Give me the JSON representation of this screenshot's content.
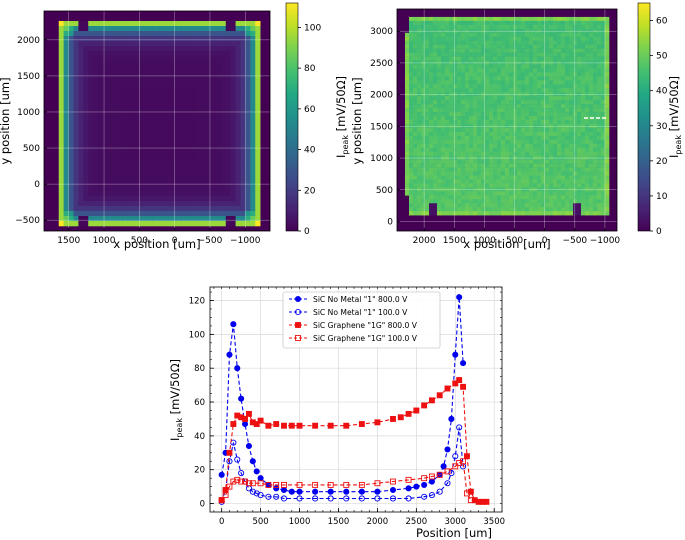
{
  "colors": {
    "viridis": [
      "#440154",
      "#482475",
      "#414487",
      "#355f8d",
      "#2a788e",
      "#21918c",
      "#22a884",
      "#44bf70",
      "#7ad151",
      "#bddf26",
      "#fde725"
    ],
    "blue": "#0000ee",
    "red": "#ee1111",
    "grid": "#ffffff",
    "line_grid": "#d9d9d9"
  },
  "chart_data": [
    {
      "id": "map1",
      "type": "heatmap",
      "title": "",
      "xlabel": "x position [um]",
      "ylabel": "y position [um]",
      "xlim": [
        1850,
        -1350
      ],
      "ylim": [
        -650,
        2400
      ],
      "x_ticks": [
        1500,
        1000,
        500,
        0,
        -500,
        -1000
      ],
      "x_tick_labels": [
        "1500",
        "1000",
        "500",
        "0",
        "−500",
        "−1000"
      ],
      "y_ticks": [
        -500,
        0,
        500,
        1000,
        1500,
        2000
      ],
      "y_tick_labels": [
        "−500",
        "0",
        "500",
        "1000",
        "1500",
        "2000"
      ],
      "colorbar_label_base": "I",
      "colorbar_label_sub": "peak",
      "colorbar_label_tail": " [mV/50Ω]",
      "colorbar_range": [
        0,
        112
      ],
      "colorbar_ticks": [
        0,
        20,
        40,
        60,
        80,
        100
      ],
      "colorbar_tick_labels": [
        "0",
        "20",
        "40",
        "60",
        "80",
        "100"
      ],
      "description_values": {
        "center": 3,
        "edge": 95,
        "corner_peak": 112
      }
    },
    {
      "id": "map2",
      "type": "heatmap",
      "title": "",
      "xlabel": "x position [um]",
      "ylabel": "y position [um]",
      "xlim": [
        2450,
        -1200
      ],
      "ylim": [
        -150,
        3350
      ],
      "x_ticks": [
        2000,
        1500,
        1000,
        500,
        0,
        -500,
        -1000
      ],
      "x_tick_labels": [
        "2000",
        "1500",
        "1000",
        "500",
        "0",
        "−500",
        "−1000"
      ],
      "y_ticks": [
        0,
        500,
        1000,
        1500,
        2000,
        2500,
        3000
      ],
      "y_tick_labels": [
        "0",
        "500",
        "1000",
        "1500",
        "2000",
        "2500",
        "3000"
      ],
      "colorbar_label_base": "I",
      "colorbar_label_sub": "peak",
      "colorbar_label_tail": " [mV/50Ω]",
      "colorbar_range": [
        0,
        65
      ],
      "colorbar_ticks": [
        0,
        10,
        20,
        30,
        40,
        50,
        60
      ],
      "colorbar_tick_labels": [
        "0",
        "10",
        "20",
        "30",
        "40",
        "50",
        "60"
      ],
      "description_values": {
        "interior": 45,
        "edge": 52
      }
    },
    {
      "id": "lines",
      "type": "line",
      "title": "",
      "xlabel": "Position [um]",
      "ylabel_base": "I",
      "ylabel_sub": "peak",
      "ylabel_tail": " [mV/50Ω]",
      "xlim": [
        -150,
        3600
      ],
      "ylim": [
        -5,
        128
      ],
      "x_ticks": [
        0,
        500,
        1000,
        1500,
        2000,
        2500,
        3000,
        3500
      ],
      "x_tick_labels": [
        "0",
        "500",
        "1000",
        "1500",
        "2000",
        "2500",
        "3000",
        "3500"
      ],
      "y_ticks": [
        0,
        20,
        40,
        60,
        80,
        100,
        120
      ],
      "y_tick_labels": [
        "0",
        "20",
        "40",
        "60",
        "80",
        "100",
        "120"
      ],
      "series": [
        {
          "name": "SiC No Metal \"1\" 800.0 V",
          "color": "#0000ee",
          "marker": "circle-filled",
          "x": [
            0,
            50,
            100,
            150,
            200,
            250,
            300,
            350,
            400,
            450,
            500,
            600,
            700,
            800,
            900,
            1000,
            1200,
            1400,
            1600,
            1800,
            2000,
            2200,
            2400,
            2500,
            2600,
            2700,
            2800,
            2850,
            2900,
            2950,
            3000,
            3050,
            3100
          ],
          "y": [
            17,
            30,
            88,
            106,
            80,
            62,
            47,
            34,
            25,
            19,
            15,
            11,
            9,
            8,
            7,
            7,
            7,
            7,
            7,
            7,
            7,
            8,
            9,
            10,
            11,
            13,
            17,
            22,
            32,
            50,
            88,
            122,
            83
          ]
        },
        {
          "name": "SiC No Metal \"1\" 100.0 V",
          "color": "#0000ee",
          "marker": "circle-open",
          "x": [
            0,
            50,
            100,
            150,
            200,
            250,
            300,
            350,
            400,
            450,
            500,
            600,
            700,
            800,
            1000,
            1200,
            1400,
            1600,
            1800,
            2000,
            2200,
            2400,
            2600,
            2700,
            2800,
            2900,
            2950,
            3000,
            3050,
            3100
          ],
          "y": [
            1,
            8,
            25,
            36,
            26,
            18,
            13,
            9,
            7,
            6,
            5,
            4,
            4,
            3,
            3,
            3,
            3,
            3,
            3,
            3,
            3,
            3,
            4,
            5,
            7,
            12,
            18,
            28,
            45,
            22
          ]
        },
        {
          "name": "SiC Graphene \"1G\" 800.0 V",
          "color": "#ee1111",
          "marker": "square-filled",
          "x": [
            0,
            50,
            100,
            150,
            200,
            250,
            300,
            350,
            400,
            450,
            500,
            600,
            700,
            800,
            900,
            1000,
            1200,
            1400,
            1600,
            1800,
            2000,
            2200,
            2300,
            2400,
            2500,
            2600,
            2700,
            2800,
            2900,
            3000,
            3050,
            3100,
            3150,
            3200,
            3250,
            3300,
            3350,
            3400
          ],
          "y": [
            2,
            8,
            30,
            47,
            52,
            51,
            50,
            53,
            48,
            47,
            49,
            46,
            47,
            46,
            46,
            46,
            46,
            46,
            46,
            47,
            48,
            50,
            51,
            53,
            55,
            58,
            61,
            64,
            68,
            71,
            73,
            69,
            28,
            7,
            2,
            1,
            1,
            1
          ]
        },
        {
          "name": "SiC Graphene \"1G\" 100.0 V",
          "color": "#ee1111",
          "marker": "square-open",
          "x": [
            0,
            50,
            100,
            150,
            200,
            250,
            300,
            350,
            400,
            500,
            600,
            700,
            800,
            1000,
            1200,
            1400,
            1600,
            1800,
            2000,
            2200,
            2400,
            2600,
            2700,
            2800,
            2900,
            3000,
            3050,
            3100,
            3150,
            3200
          ],
          "y": [
            2,
            5,
            10,
            13,
            14,
            13,
            13,
            12,
            12,
            12,
            11,
            11,
            11,
            11,
            11,
            11,
            11,
            11,
            12,
            13,
            14,
            15,
            16,
            17,
            19,
            22,
            24,
            25,
            6,
            2
          ]
        }
      ]
    }
  ]
}
